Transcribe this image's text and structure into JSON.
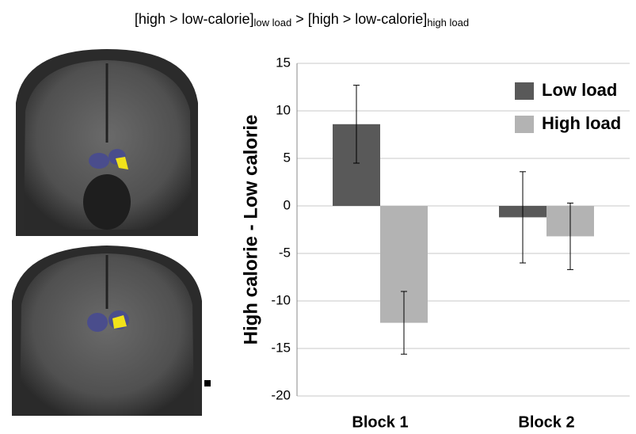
{
  "chart_data": {
    "type": "bar",
    "title_segments": [
      "[high > low-calorie]",
      "low load",
      "> [high > low-calorie]",
      "high load"
    ],
    "ylabel": "High calorie - Low calorie",
    "categories": [
      "Block 1",
      "Block 2"
    ],
    "series": [
      {
        "name": "Low load",
        "color": "#595959",
        "values": [
          8.6,
          -1.2
        ],
        "errors": [
          4.1,
          4.8
        ]
      },
      {
        "name": "High load",
        "color": "#b3b3b3",
        "values": [
          -12.3,
          -3.2
        ],
        "errors": [
          3.3,
          3.5
        ]
      }
    ],
    "ylim": [
      -20,
      15
    ],
    "yticks": [
      -20,
      -15,
      -10,
      -5,
      0,
      5,
      10,
      15
    ],
    "grid": true,
    "legend": "upper right"
  }
}
